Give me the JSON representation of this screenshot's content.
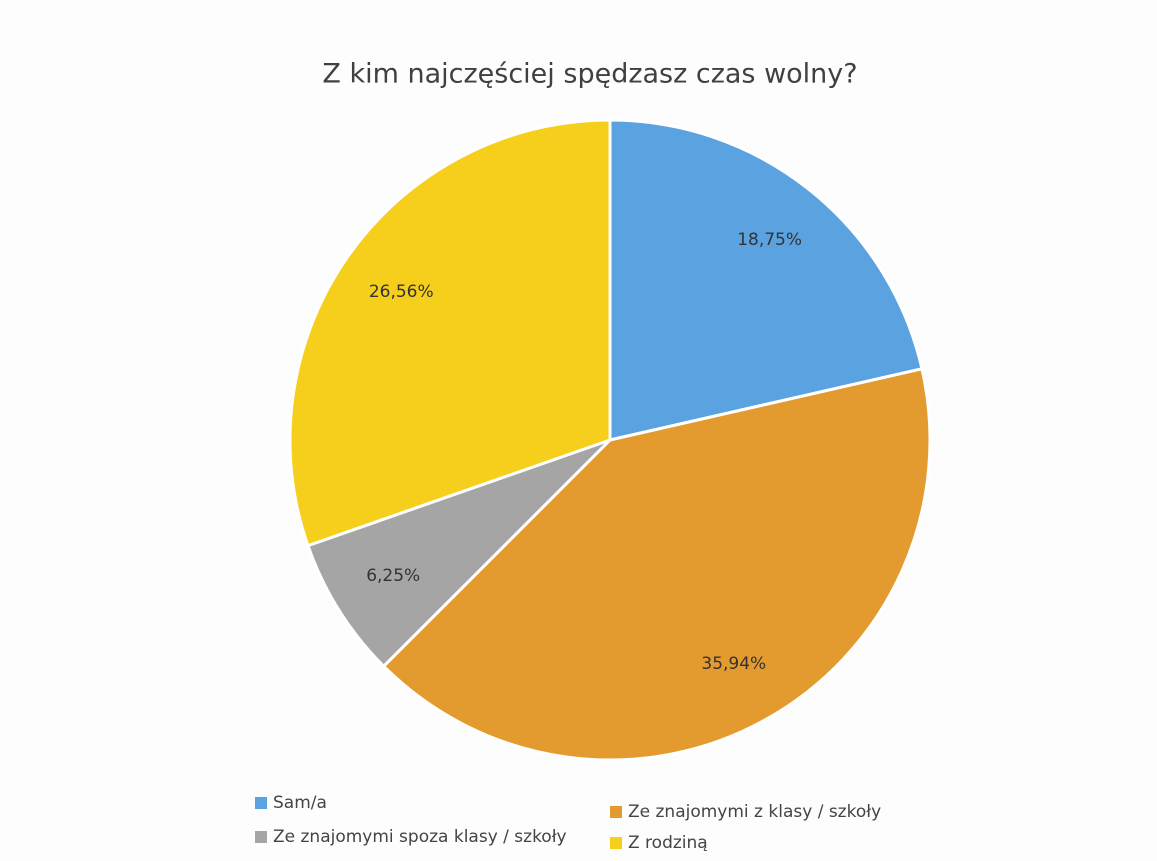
{
  "chart_data": {
    "type": "pie",
    "title": "Z kim najczęściej spędzasz czas wolny?",
    "categories": [
      "Sam/a",
      "Ze znajomymi z klasy / szkoły",
      "Ze znajomymi spoza klasy / szkoły",
      "Z rodziną"
    ],
    "values": [
      18.75,
      35.94,
      6.25,
      26.56
    ],
    "value_labels": [
      "18,75%",
      "35,94%",
      "6,25%",
      "26,56%"
    ],
    "colors": [
      "#5ba3e0",
      "#e39a2e",
      "#a5a5a5",
      "#f5cf1b"
    ],
    "legend": "bottom"
  }
}
